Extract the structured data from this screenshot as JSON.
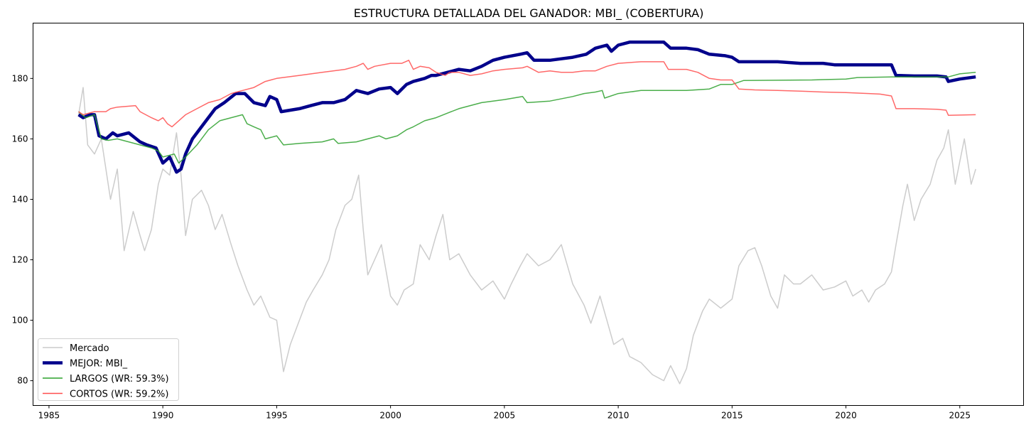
{
  "chart_data": {
    "type": "line",
    "title": "ESTRUCTURA DETALLADA DEL GANADOR: MBI_ (COBERTURA)",
    "xlabel": "",
    "ylabel": "",
    "xlim": [
      1984.3,
      2027.8
    ],
    "ylim": [
      71.8,
      198.3
    ],
    "xticks": [
      1985,
      1990,
      1995,
      2000,
      2005,
      2010,
      2015,
      2020,
      2025
    ],
    "xtick_labels": [
      "1985",
      "1990",
      "1995",
      "2000",
      "2005",
      "2010",
      "2015",
      "2020",
      "2025"
    ],
    "yticks": [
      80,
      100,
      120,
      140,
      160,
      180
    ],
    "ytick_labels": [
      "80",
      "100",
      "120",
      "140",
      "160",
      "180"
    ],
    "grid": false,
    "legend_position": "lower-left",
    "series": [
      {
        "name": "Mercado",
        "color": "#cccccc",
        "width": 1.5,
        "x": [
          1986.3,
          1986.5,
          1986.7,
          1987.0,
          1987.3,
          1987.7,
          1988.0,
          1988.3,
          1988.7,
          1989.0,
          1989.2,
          1989.5,
          1989.8,
          1990.0,
          1990.3,
          1990.6,
          1990.8,
          1991.0,
          1991.3,
          1991.7,
          1992.0,
          1992.3,
          1992.6,
          1993.0,
          1993.3,
          1993.7,
          1994.0,
          1994.3,
          1994.7,
          1995.0,
          1995.3,
          1995.6,
          1996.0,
          1996.3,
          1996.6,
          1997.0,
          1997.3,
          1997.6,
          1998.0,
          1998.3,
          1998.6,
          1998.8,
          1999.0,
          1999.3,
          1999.6,
          2000.0,
          2000.3,
          2000.6,
          2001.0,
          2001.3,
          2001.7,
          2002.0,
          2002.3,
          2002.6,
          2003.0,
          2003.5,
          2004.0,
          2004.5,
          2005.0,
          2005.3,
          2005.7,
          2006.0,
          2006.5,
          2007.0,
          2007.5,
          2008.0,
          2008.5,
          2008.8,
          2009.2,
          2009.5,
          2009.8,
          2010.2,
          2010.5,
          2011.0,
          2011.5,
          2012.0,
          2012.3,
          2012.7,
          2013.0,
          2013.3,
          2013.7,
          2014.0,
          2014.5,
          2015.0,
          2015.3,
          2015.7,
          2016.0,
          2016.3,
          2016.7,
          2017.0,
          2017.3,
          2017.7,
          2018.0,
          2018.5,
          2019.0,
          2019.5,
          2020.0,
          2020.3,
          2020.7,
          2021.0,
          2021.3,
          2021.7,
          2022.0,
          2022.2,
          2022.5,
          2022.7,
          2023.0,
          2023.3,
          2023.7,
          2024.0,
          2024.3,
          2024.5,
          2024.8,
          2025.2,
          2025.5,
          2025.7
        ],
        "y": [
          168,
          177,
          158,
          155,
          160,
          140,
          150,
          123,
          136,
          128,
          123,
          130,
          145,
          150,
          148,
          162,
          148,
          128,
          140,
          143,
          138,
          130,
          135,
          125,
          118,
          110,
          105,
          108,
          101,
          100,
          83,
          92,
          100,
          106,
          110,
          115,
          120,
          130,
          138,
          140,
          148,
          130,
          115,
          120,
          125,
          108,
          105,
          110,
          112,
          125,
          120,
          128,
          135,
          120,
          122,
          115,
          110,
          113,
          107,
          112,
          118,
          122,
          118,
          120,
          125,
          112,
          105,
          99,
          108,
          100,
          92,
          94,
          88,
          86,
          82,
          80,
          85,
          79,
          84,
          95,
          103,
          107,
          104,
          107,
          118,
          123,
          124,
          118,
          108,
          104,
          115,
          112,
          112,
          115,
          110,
          111,
          113,
          108,
          110,
          106,
          110,
          112,
          116,
          125,
          138,
          145,
          133,
          140,
          145,
          153,
          157,
          163,
          145,
          160,
          145,
          150
        ]
      },
      {
        "name": "MEJOR: MBI_",
        "color": "#00008b",
        "width": 4.5,
        "x": [
          1986.3,
          1986.5,
          1986.8,
          1987.0,
          1987.2,
          1987.5,
          1987.8,
          1988.0,
          1988.5,
          1989.0,
          1989.3,
          1989.7,
          1990.0,
          1990.3,
          1990.6,
          1990.8,
          1991.0,
          1991.3,
          1991.8,
          1992.3,
          1992.7,
          1993.2,
          1993.6,
          1994.0,
          1994.5,
          1994.7,
          1995.0,
          1995.2,
          1996.0,
          1996.5,
          1997.0,
          1997.5,
          1998.0,
          1998.5,
          1999.0,
          1999.5,
          2000.0,
          2000.3,
          2000.7,
          2001.0,
          2001.5,
          2001.8,
          2002.0,
          2002.5,
          2003.0,
          2003.5,
          2004.0,
          2004.5,
          2005.0,
          2005.7,
          2006.0,
          2006.3,
          2007.0,
          2007.5,
          2008.0,
          2008.6,
          2009.0,
          2009.5,
          2009.7,
          2010.0,
          2010.5,
          2011.0,
          2011.5,
          2012.0,
          2012.3,
          2013.0,
          2013.5,
          2014.0,
          2014.7,
          2015.0,
          2015.3,
          2016.0,
          2017.0,
          2018.0,
          2019.0,
          2019.5,
          2020.0,
          2021.0,
          2022.0,
          2022.2,
          2023.0,
          2024.0,
          2024.4,
          2024.5,
          2025.0,
          2025.7
        ],
        "y": [
          168,
          167,
          168,
          168,
          161,
          160,
          162,
          161,
          162,
          159,
          158,
          157,
          152,
          154,
          149,
          150,
          155,
          160,
          165,
          170,
          172,
          175,
          175,
          172,
          171,
          174,
          173,
          169,
          170,
          171,
          172,
          172,
          173,
          176,
          175,
          176.5,
          177,
          175,
          178,
          179,
          180,
          181,
          181,
          182,
          183,
          182.5,
          184,
          186,
          187,
          188,
          188.5,
          186,
          186,
          186.5,
          187,
          188,
          190,
          191,
          189,
          191,
          192,
          192,
          192,
          192,
          190,
          190,
          189.5,
          188,
          187.5,
          187,
          185.5,
          185.5,
          185.5,
          185,
          185,
          184.5,
          184.5,
          184.5,
          184.5,
          181,
          180.8,
          180.8,
          180.5,
          179,
          179.8,
          180.5
        ]
      },
      {
        "name": "LARGOS (WR: 59.3%)",
        "color": "#2ca02c",
        "width": 1.5,
        "x": [
          1986.3,
          1986.6,
          1987.0,
          1987.3,
          1987.6,
          1988.0,
          1988.5,
          1989.0,
          1989.5,
          1989.8,
          1990.0,
          1990.5,
          1990.7,
          1991.0,
          1991.5,
          1992.0,
          1992.5,
          1993.0,
          1993.5,
          1993.7,
          1994.0,
          1994.3,
          1994.5,
          1995.0,
          1995.3,
          1996.0,
          1997.0,
          1997.5,
          1997.7,
          1998.5,
          1999.0,
          1999.5,
          1999.8,
          2000.3,
          2000.7,
          2001.0,
          2001.5,
          2002.0,
          2002.5,
          2003.0,
          2003.5,
          2004.0,
          2005.0,
          2005.8,
          2006.0,
          2007.0,
          2008.0,
          2008.5,
          2009.0,
          2009.3,
          2009.4,
          2010.0,
          2011.0,
          2012.0,
          2013.0,
          2014.0,
          2014.5,
          2015.0,
          2015.5,
          2017.0,
          2018.5,
          2019.0,
          2020.0,
          2020.5,
          2022.0,
          2023.0,
          2024.5,
          2025.0,
          2025.7
        ],
        "y": [
          169,
          167,
          168,
          160,
          159.5,
          160,
          159,
          158,
          157,
          156,
          154,
          155,
          152,
          154,
          158,
          163,
          166,
          167,
          168,
          165,
          164,
          163,
          160,
          161,
          158,
          158.5,
          159,
          160,
          158.5,
          159,
          160,
          161,
          160,
          161,
          163,
          164,
          166,
          167,
          168.5,
          170,
          171,
          172,
          173,
          174,
          172,
          172.5,
          174,
          175,
          175.5,
          176,
          173.5,
          175,
          176,
          176,
          176,
          176.5,
          178,
          178,
          179.3,
          179.4,
          179.5,
          179.6,
          179.8,
          180.3,
          180.5,
          180.5,
          180.5,
          181.5,
          182
        ]
      },
      {
        "name": "CORTOS (WR: 59.2%)",
        "color": "#ff4d4d",
        "width": 1.5,
        "x": [
          1986.3,
          1986.5,
          1987.0,
          1987.5,
          1987.7,
          1988.0,
          1988.8,
          1989.0,
          1989.5,
          1989.8,
          1990.0,
          1990.2,
          1990.4,
          1990.7,
          1991.0,
          1991.5,
          1992.0,
          1992.5,
          1993.0,
          1993.5,
          1994.0,
          1994.5,
          1995.0,
          1996.0,
          1997.0,
          1998.0,
          1998.5,
          1998.8,
          1999.0,
          1999.3,
          2000.0,
          2000.5,
          2000.8,
          2001.0,
          2001.3,
          2001.7,
          2002.0,
          2002.4,
          2002.6,
          2003.0,
          2003.5,
          2004.0,
          2004.5,
          2005.0,
          2005.8,
          2006.0,
          2006.5,
          2007.0,
          2007.5,
          2008.0,
          2008.5,
          2009.0,
          2009.5,
          2010.0,
          2011.0,
          2012.0,
          2012.2,
          2013.0,
          2013.5,
          2014.0,
          2014.5,
          2015.0,
          2015.3,
          2016.0,
          2017.0,
          2018.0,
          2019.0,
          2020.0,
          2021.0,
          2021.5,
          2022.0,
          2022.2,
          2023.0,
          2024.0,
          2024.4,
          2024.5,
          2025.7
        ],
        "y": [
          169,
          168,
          169,
          169,
          170,
          170.5,
          171,
          169,
          167,
          166,
          167,
          165,
          164,
          166,
          168,
          170,
          172,
          173,
          175,
          176,
          177,
          179,
          180,
          181,
          182,
          183,
          184,
          185,
          183,
          184,
          185,
          185,
          186,
          183,
          184,
          183.5,
          182,
          181,
          182,
          182,
          181,
          181.5,
          182.5,
          183,
          183.5,
          184,
          182,
          182.5,
          182,
          182,
          182.5,
          182.5,
          184,
          185,
          185.5,
          185.5,
          183,
          183,
          182,
          180,
          179.5,
          179.5,
          176.5,
          176.2,
          176,
          175.8,
          175.5,
          175.3,
          175,
          174.8,
          174.2,
          170,
          170,
          169.8,
          169.5,
          167.8,
          168
        ]
      }
    ]
  }
}
